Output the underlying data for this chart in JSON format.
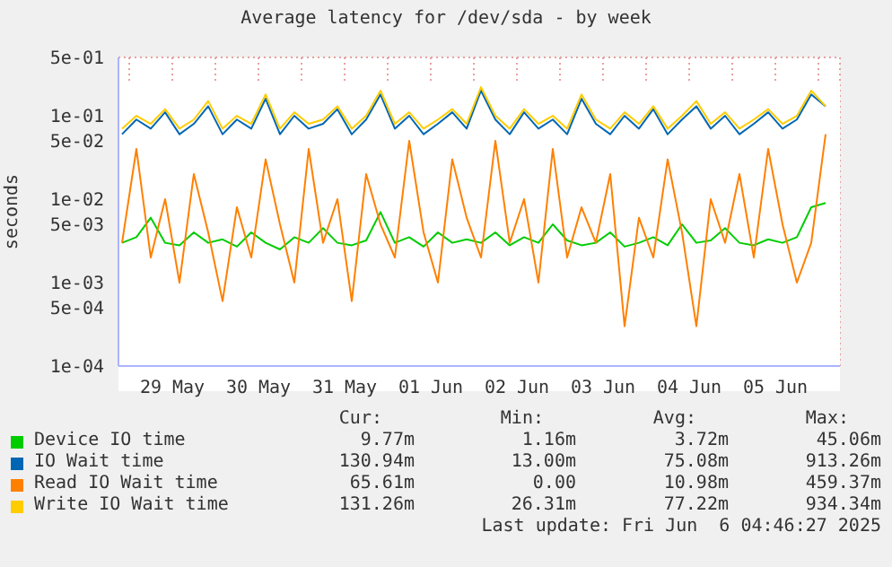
{
  "chart_data": {
    "type": "line",
    "title": "Average latency for /dev/sda - by week",
    "ylabel": "seconds",
    "log": "y",
    "grid": true,
    "legend": "bottom",
    "marker": "none",
    "line_style": "solid",
    "xlim": [
      "2025-05-28T21:00",
      "2025-06-06T06:00"
    ],
    "xticks": [
      {
        "value": "2025-05-29T00:00",
        "label": null
      },
      {
        "value": "2025-05-29T12:00",
        "label": "29 May"
      },
      {
        "value": "2025-05-30T00:00",
        "label": null
      },
      {
        "value": "2025-05-30T12:00",
        "label": "30 May"
      },
      {
        "value": "2025-05-31T00:00",
        "label": null
      },
      {
        "value": "2025-05-31T12:00",
        "label": "31 May"
      },
      {
        "value": "2025-06-01T00:00",
        "label": null
      },
      {
        "value": "2025-06-01T12:00",
        "label": "01 Jun"
      },
      {
        "value": "2025-06-02T00:00",
        "label": null
      },
      {
        "value": "2025-06-02T12:00",
        "label": "02 Jun"
      },
      {
        "value": "2025-06-03T00:00",
        "label": null
      },
      {
        "value": "2025-06-03T12:00",
        "label": "03 Jun"
      },
      {
        "value": "2025-06-04T00:00",
        "label": null
      },
      {
        "value": "2025-06-04T12:00",
        "label": "04 Jun"
      },
      {
        "value": "2025-06-05T00:00",
        "label": null
      },
      {
        "value": "2025-06-05T12:00",
        "label": "05 Jun"
      },
      {
        "value": "2025-06-06T00:00",
        "label": null
      }
    ],
    "ylim": [
      0.0001,
      0.5
    ],
    "yticks": [
      {
        "value": 0.0001,
        "label": "1e-04"
      },
      {
        "value": 0.0005,
        "label": "5e-04"
      },
      {
        "value": 0.001,
        "label": "1e-03"
      },
      {
        "value": 0.005,
        "label": "5e-03"
      },
      {
        "value": 0.01,
        "label": "1e-02"
      },
      {
        "value": 0.05,
        "label": "5e-02"
      },
      {
        "value": 0.1,
        "label": "1e-01"
      },
      {
        "value": 0.5,
        "label": "5e-01"
      }
    ],
    "x": [
      "2025-05-28T22:00",
      "2025-05-29T02:00",
      "2025-05-29T06:00",
      "2025-05-29T10:00",
      "2025-05-29T14:00",
      "2025-05-29T18:00",
      "2025-05-29T22:00",
      "2025-05-30T02:00",
      "2025-05-30T06:00",
      "2025-05-30T10:00",
      "2025-05-30T14:00",
      "2025-05-30T18:00",
      "2025-05-30T22:00",
      "2025-05-31T02:00",
      "2025-05-31T06:00",
      "2025-05-31T10:00",
      "2025-05-31T14:00",
      "2025-05-31T18:00",
      "2025-05-31T22:00",
      "2025-06-01T02:00",
      "2025-06-01T06:00",
      "2025-06-01T10:00",
      "2025-06-01T14:00",
      "2025-06-01T18:00",
      "2025-06-01T22:00",
      "2025-06-02T02:00",
      "2025-06-02T06:00",
      "2025-06-02T10:00",
      "2025-06-02T14:00",
      "2025-06-02T18:00",
      "2025-06-02T22:00",
      "2025-06-03T02:00",
      "2025-06-03T06:00",
      "2025-06-03T10:00",
      "2025-06-03T14:00",
      "2025-06-03T18:00",
      "2025-06-03T22:00",
      "2025-06-04T02:00",
      "2025-06-04T06:00",
      "2025-06-04T10:00",
      "2025-06-04T14:00",
      "2025-06-04T18:00",
      "2025-06-04T22:00",
      "2025-06-05T02:00",
      "2025-06-05T06:00",
      "2025-06-05T10:00",
      "2025-06-05T14:00",
      "2025-06-05T18:00",
      "2025-06-05T22:00",
      "2025-06-06T02:00"
    ],
    "series": [
      {
        "name": "Device IO time",
        "color": "#00cc00",
        "values": [
          0.003,
          0.0035,
          0.006,
          0.003,
          0.0028,
          0.004,
          0.003,
          0.0033,
          0.0027,
          0.004,
          0.003,
          0.0025,
          0.0035,
          0.003,
          0.0045,
          0.003,
          0.0028,
          0.0032,
          0.007,
          0.003,
          0.0035,
          0.0027,
          0.004,
          0.003,
          0.0033,
          0.003,
          0.004,
          0.0028,
          0.0035,
          0.003,
          0.005,
          0.0032,
          0.0028,
          0.003,
          0.004,
          0.0027,
          0.003,
          0.0035,
          0.0028,
          0.005,
          0.003,
          0.0032,
          0.0045,
          0.003,
          0.0028,
          0.0033,
          0.003,
          0.0035,
          0.008,
          0.009
        ]
      },
      {
        "name": "IO Wait time",
        "color": "#0066b3",
        "values": [
          0.06,
          0.09,
          0.07,
          0.11,
          0.06,
          0.08,
          0.13,
          0.06,
          0.09,
          0.07,
          0.16,
          0.06,
          0.1,
          0.07,
          0.08,
          0.12,
          0.06,
          0.09,
          0.18,
          0.07,
          0.1,
          0.06,
          0.08,
          0.11,
          0.07,
          0.2,
          0.09,
          0.06,
          0.11,
          0.07,
          0.09,
          0.06,
          0.16,
          0.08,
          0.06,
          0.1,
          0.07,
          0.12,
          0.06,
          0.09,
          0.13,
          0.07,
          0.1,
          0.06,
          0.08,
          0.11,
          0.07,
          0.09,
          0.18,
          0.13
        ]
      },
      {
        "name": "Read IO Wait time",
        "color": "#ff8000",
        "values": [
          0.003,
          0.04,
          0.002,
          0.01,
          0.001,
          0.02,
          0.004,
          0.0006,
          0.008,
          0.002,
          0.03,
          0.005,
          0.001,
          0.04,
          0.003,
          0.01,
          0.0006,
          0.02,
          0.005,
          0.002,
          0.05,
          0.004,
          0.001,
          0.03,
          0.006,
          0.002,
          0.05,
          0.003,
          0.01,
          0.001,
          0.04,
          0.002,
          0.008,
          0.003,
          0.02,
          0.0003,
          0.006,
          0.002,
          0.03,
          0.004,
          0.0003,
          0.01,
          0.003,
          0.02,
          0.002,
          0.04,
          0.005,
          0.001,
          0.003,
          0.06
        ]
      },
      {
        "name": "Write IO Wait time",
        "color": "#ffcc00",
        "values": [
          0.07,
          0.1,
          0.08,
          0.12,
          0.07,
          0.09,
          0.15,
          0.07,
          0.1,
          0.08,
          0.18,
          0.07,
          0.11,
          0.08,
          0.09,
          0.13,
          0.07,
          0.1,
          0.2,
          0.08,
          0.11,
          0.07,
          0.09,
          0.12,
          0.08,
          0.22,
          0.1,
          0.07,
          0.12,
          0.08,
          0.1,
          0.07,
          0.18,
          0.09,
          0.07,
          0.11,
          0.08,
          0.13,
          0.07,
          0.1,
          0.15,
          0.08,
          0.11,
          0.07,
          0.09,
          0.12,
          0.08,
          0.1,
          0.2,
          0.13
        ]
      }
    ],
    "annotations": [
      "Cur:",
      "Min:",
      "Avg:",
      "Max:",
      "9.77m",
      "1.16m",
      "3.72m",
      "45.06m",
      "130.94m",
      "13.00m",
      "75.08m",
      "913.26m",
      "65.61m",
      "0.00",
      "10.98m",
      "459.37m",
      "131.26m",
      "26.31m",
      "77.22m",
      "934.34m",
      "Last update: Fri Jun  6 04:46:27 2025"
    ]
  }
}
